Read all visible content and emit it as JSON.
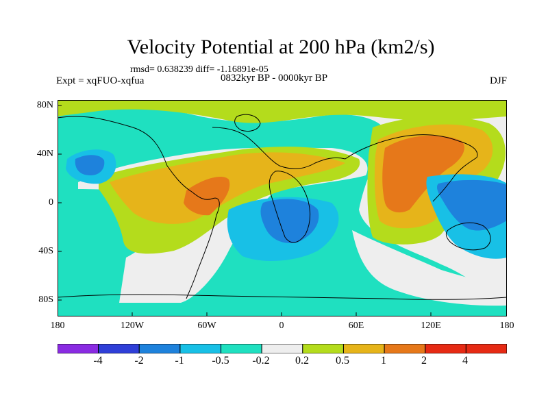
{
  "title": "Velocity Potential at 200 hPa (km2/s)",
  "stats": "rmsd= 0.638239 diff= -1.16891e-05",
  "experiment": "Expt = xqFUO-xqfua",
  "period": "0832kyr BP - 0000kyr BP",
  "season": "DJF",
  "lat_labels": [
    "80N",
    "40N",
    "0",
    "40S",
    "80S"
  ],
  "lon_labels": [
    "180",
    "120W",
    "60W",
    "0",
    "60E",
    "120E",
    "180"
  ],
  "colorbar": {
    "labels": [
      "-4",
      "-2",
      "-1",
      "-0.5",
      "-0.2",
      "0.2",
      "0.5",
      "1",
      "2",
      "4"
    ],
    "colors": [
      "#8a2be2",
      "#2f3fd8",
      "#1e82dc",
      "#18c0e6",
      "#1fe0c0",
      "#eeeeee",
      "#b4dc1c",
      "#e6b41a",
      "#e6781a",
      "#e62a14"
    ]
  },
  "fill_colors": {
    "ocean_base": "#1fe0c0",
    "neutral": "#eeeeee",
    "light_positive": "#b4dc1c",
    "positive": "#e6b41a",
    "strong_positive": "#e6781a",
    "light_negative": "#18c0e6",
    "negative": "#1e82dc"
  }
}
